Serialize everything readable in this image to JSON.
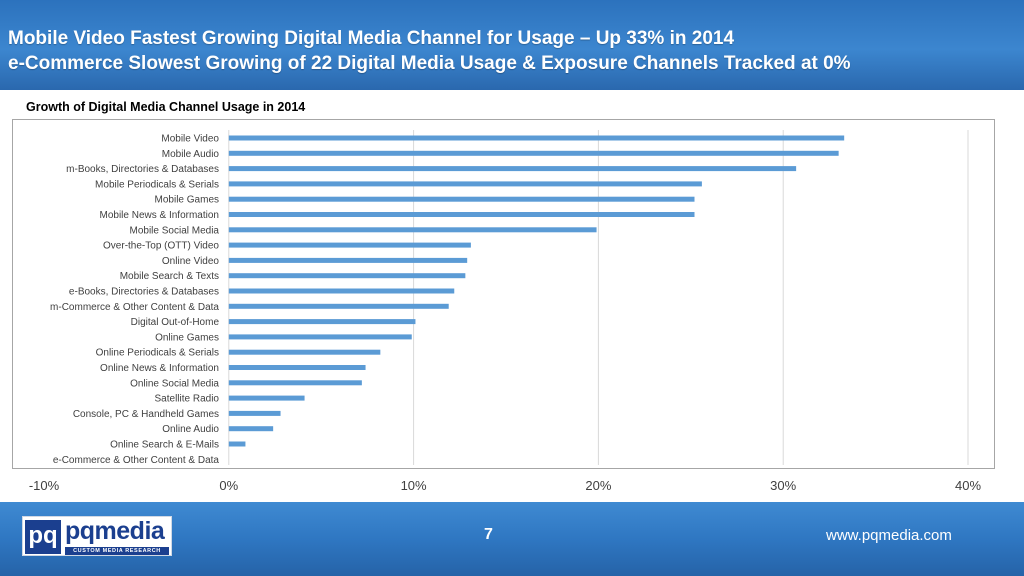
{
  "header": {
    "line1": "Mobile Video Fastest Growing Digital Media Channel for Usage – Up 33% in 2014",
    "line2": "e-Commerce Slowest Growing of 22 Digital Media Usage & Exposure Channels Tracked at 0%"
  },
  "footer": {
    "logo_letters": "pq",
    "logo_name": "pqmedia",
    "logo_tagline": "CUSTOM MEDIA RESEARCH",
    "page_number": "7",
    "website": "www.pqmedia.com"
  },
  "colors": {
    "bar": "#5b9bd5",
    "header": "#2f77c2",
    "footer": "#2f77c2",
    "gridline": "#d9d9d9"
  },
  "chart_data": {
    "type": "bar",
    "orientation": "horizontal",
    "title": "Growth of Digital Media Channel Usage in 2014",
    "xlabel": "",
    "ylabel": "",
    "xlim": [
      -0.1,
      0.4
    ],
    "x_ticks": [
      -0.1,
      0.0,
      0.1,
      0.2,
      0.3,
      0.4
    ],
    "x_tick_labels": [
      "-10%",
      "0%",
      "10%",
      "20%",
      "30%",
      "40%"
    ],
    "grid": true,
    "legend": "none",
    "categories": [
      "Mobile Video",
      "Mobile Audio",
      "m-Books, Directories & Databases",
      "Mobile Periodicals & Serials",
      "Mobile Games",
      "Mobile News & Information",
      "Mobile Social Media",
      "Over-the-Top (OTT) Video",
      "Online Video",
      "Mobile Search & Texts",
      "e-Books, Directories & Databases",
      "m-Commerce & Other Content & Data",
      "Digital Out-of-Home",
      "Online Games",
      "Online Periodicals & Serials",
      "Online News & Information",
      "Online Social Media",
      "Satellite Radio",
      "Console, PC & Handheld Games",
      "Online Audio",
      "Online Search & E-Mails",
      "e-Commerce & Other Content & Data"
    ],
    "values": [
      0.333,
      0.33,
      0.307,
      0.256,
      0.252,
      0.252,
      0.199,
      0.131,
      0.129,
      0.128,
      0.122,
      0.119,
      0.101,
      0.099,
      0.082,
      0.074,
      0.072,
      0.041,
      0.028,
      0.024,
      0.009,
      0.0
    ]
  }
}
